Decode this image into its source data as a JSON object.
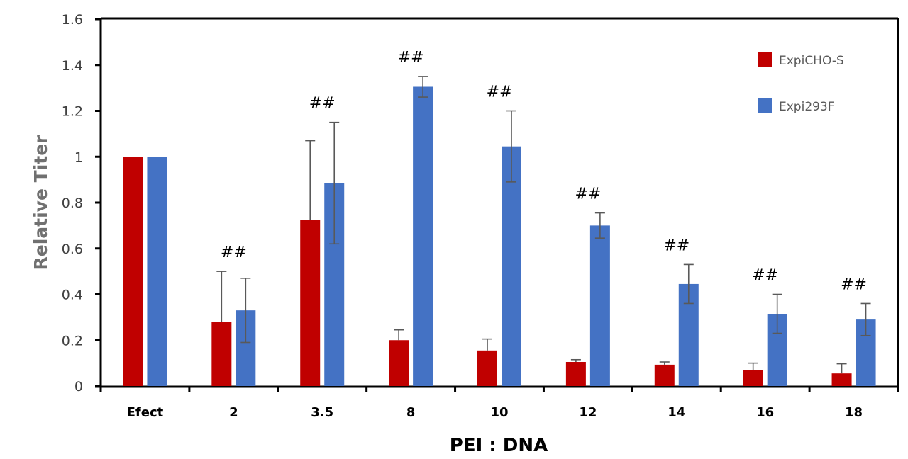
{
  "chart_data": {
    "type": "bar",
    "title": "",
    "xlabel": "PEI : DNA",
    "ylabel": "Relative Titer",
    "ylim": [
      0,
      1.6
    ],
    "yticks": [
      "0",
      "0.2",
      "0.4",
      "0.6",
      "0.8",
      "1",
      "1.2",
      "1.4",
      "1.6"
    ],
    "ytick_values": [
      0,
      0.2,
      0.4,
      0.6,
      0.8,
      1,
      1.2,
      1.4,
      1.6
    ],
    "grid": false,
    "legend_position": "top-right",
    "categories": [
      "Efect",
      "2",
      "3.5",
      "8",
      "10",
      "12",
      "14",
      "16",
      "18"
    ],
    "series": [
      {
        "name": "ExpiCHO-S",
        "color": "#C00000",
        "values": [
          1.0,
          0.28,
          0.725,
          0.2,
          0.155,
          0.105,
          0.093,
          0.068,
          0.055
        ],
        "errors": [
          0.0,
          0.22,
          0.345,
          0.045,
          0.05,
          0.01,
          0.012,
          0.032,
          0.042
        ]
      },
      {
        "name": "Expi293F",
        "color": "#4472C4",
        "values": [
          1.0,
          0.33,
          0.885,
          1.305,
          1.045,
          0.7,
          0.445,
          0.315,
          0.29
        ],
        "errors": [
          0.0,
          0.14,
          0.265,
          0.045,
          0.155,
          0.055,
          0.085,
          0.085,
          0.07
        ]
      }
    ],
    "annotations": [
      {
        "category": "2",
        "text": "##"
      },
      {
        "category": "3.5",
        "text": "##"
      },
      {
        "category": "8",
        "text": "##"
      },
      {
        "category": "10",
        "text": "##"
      },
      {
        "category": "12",
        "text": "##"
      },
      {
        "category": "14",
        "text": "##"
      },
      {
        "category": "16",
        "text": "##"
      },
      {
        "category": "18",
        "text": "##"
      }
    ]
  }
}
